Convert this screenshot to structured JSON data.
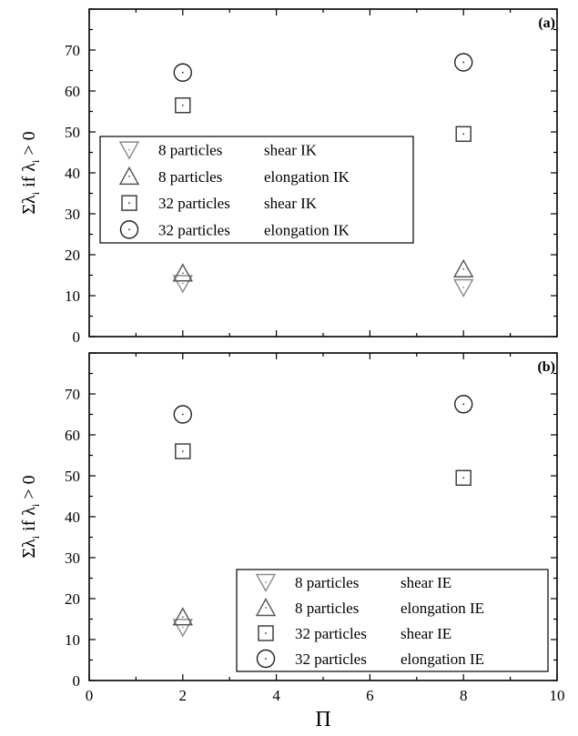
{
  "chart_data": [
    {
      "type": "scatter",
      "panel_label": "(a)",
      "ylabel": "Σλ_i if λ_i > 0",
      "xlabel": "",
      "xlim": [
        0,
        10
      ],
      "ylim": [
        0,
        80
      ],
      "yticks": [
        0,
        10,
        20,
        30,
        40,
        50,
        60,
        70
      ],
      "xticks": [
        0,
        2,
        4,
        6,
        8,
        10
      ],
      "x_tick_labels_shown": false,
      "grid": false,
      "legend_position": "center-left",
      "series": [
        {
          "name": "8 particles   shear IK",
          "marker": "triangle-down",
          "color": "#8a8a8a",
          "x": [
            2,
            8
          ],
          "y": [
            13,
            12
          ]
        },
        {
          "name": "8 particles   elongation IK",
          "marker": "triangle-up",
          "color": "#555555",
          "x": [
            2,
            8
          ],
          "y": [
            15.5,
            16.5
          ]
        },
        {
          "name": "32 particles  shear IK",
          "marker": "square",
          "color": "#333333",
          "x": [
            2,
            8
          ],
          "y": [
            56.5,
            49.5
          ]
        },
        {
          "name": "32 particles  elongation IK",
          "marker": "circle",
          "color": "#222222",
          "x": [
            2,
            8
          ],
          "y": [
            64.5,
            67
          ]
        }
      ]
    },
    {
      "type": "scatter",
      "panel_label": "(b)",
      "ylabel": "Σλ_i if λ_i > 0",
      "xlabel": "Π",
      "xlim": [
        0,
        10
      ],
      "ylim": [
        0,
        80
      ],
      "yticks": [
        0,
        10,
        20,
        30,
        40,
        50,
        60,
        70
      ],
      "xticks": [
        0,
        2,
        4,
        6,
        8,
        10
      ],
      "x_tick_labels_shown": true,
      "grid": false,
      "legend_position": "bottom-right",
      "series": [
        {
          "name": "8 particles   shear IE",
          "marker": "triangle-down",
          "color": "#8a8a8a",
          "x": [
            2
          ],
          "y": [
            13
          ]
        },
        {
          "name": "8 particles   elongation IE",
          "marker": "triangle-up",
          "color": "#555555",
          "x": [
            2
          ],
          "y": [
            15.5
          ]
        },
        {
          "name": "32 particles  shear IE",
          "marker": "square",
          "color": "#333333",
          "x": [
            2,
            8
          ],
          "y": [
            56,
            49.5
          ]
        },
        {
          "name": "32 particles  elongation IE",
          "marker": "circle",
          "color": "#222222",
          "x": [
            2,
            8
          ],
          "y": [
            65,
            67.5
          ]
        }
      ]
    }
  ]
}
